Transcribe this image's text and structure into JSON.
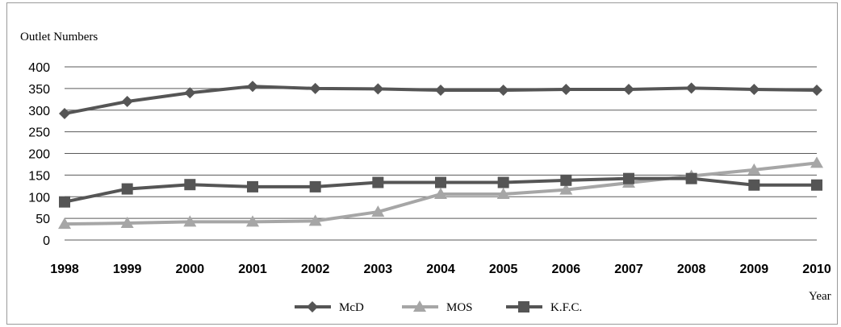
{
  "chart_data": {
    "type": "line",
    "ylabel": "Outlet Numbers",
    "xlabel": "Year",
    "x": [
      "1998",
      "1999",
      "2000",
      "2001",
      "2002",
      "2003",
      "2004",
      "2005",
      "2006",
      "2007",
      "2008",
      "2009",
      "2010"
    ],
    "ylim": [
      0,
      400
    ],
    "yticks": [
      0,
      50,
      100,
      150,
      200,
      250,
      300,
      350,
      400
    ],
    "grid": true,
    "legend_position": "bottom",
    "series": [
      {
        "name": "McD",
        "marker": "diamond",
        "color": "#555555",
        "values": [
          292,
          320,
          340,
          355,
          350,
          349,
          346,
          346,
          348,
          348,
          351,
          348,
          346
        ]
      },
      {
        "name": "MOS",
        "marker": "triangle",
        "color": "#a6a6a6",
        "values": [
          37,
          39,
          42,
          42,
          44,
          65,
          106,
          106,
          116,
          132,
          148,
          162,
          178
        ]
      },
      {
        "name": "K.F.C.",
        "marker": "square",
        "color": "#555555",
        "values": [
          88,
          118,
          128,
          123,
          123,
          133,
          133,
          133,
          138,
          142,
          142,
          127,
          127
        ]
      }
    ]
  }
}
